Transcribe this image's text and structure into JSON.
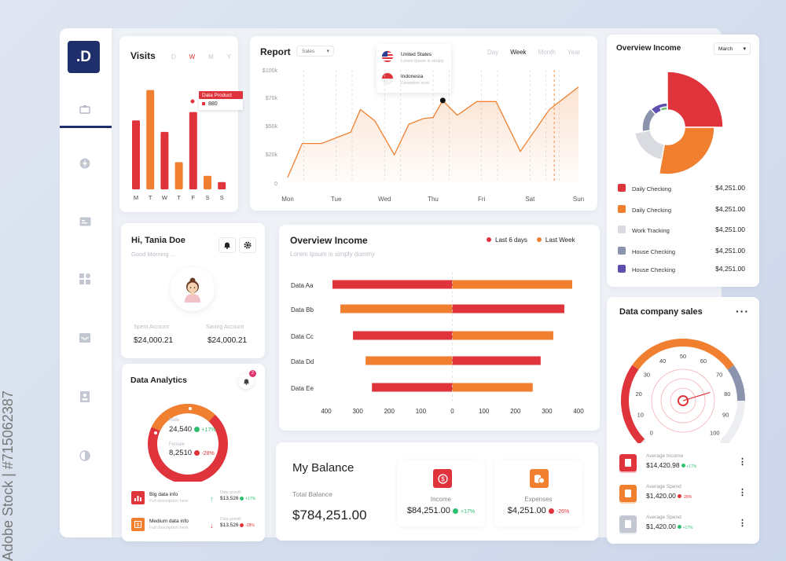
{
  "brand": {
    "logo": ".D"
  },
  "watermark": "Adobe Stock | #715062387",
  "visits": {
    "title": "Visits",
    "tabs": [
      "D",
      "W",
      "M",
      "Y"
    ],
    "active_tab": "W",
    "days": [
      "M",
      "T",
      "W",
      "T",
      "F",
      "S",
      "S"
    ],
    "values": [
      0.66,
      0.95,
      0.55,
      0.26,
      0.74,
      0.13,
      0.07
    ],
    "colors": [
      "#e0343c",
      "#f08030",
      "#e0343c",
      "#f08030",
      "#e0343c",
      "#f08030",
      "#e0343c"
    ],
    "tooltip_title": "Data Product",
    "tooltip_value": "880"
  },
  "report": {
    "title": "Report",
    "select": "Sales",
    "ranges": [
      "Day",
      "Week",
      "Month",
      "Year"
    ],
    "active_range": "Week",
    "legend": [
      {
        "name": "United States",
        "sub": "Lorem Ipsum is simply"
      },
      {
        "name": "Indonesia",
        "sub": "Exception sunt"
      }
    ],
    "chart_data": {
      "type": "area",
      "x": [
        "Mon",
        "Tue",
        "Wed",
        "Thu",
        "Fri",
        "Sat",
        "Sun"
      ],
      "ylabels": [
        "$100k",
        "$70k",
        "$50k",
        "$20k",
        "0"
      ],
      "ylim": [
        0,
        100
      ],
      "points": [
        [
          0,
          5
        ],
        [
          0.3,
          35
        ],
        [
          0.7,
          35
        ],
        [
          1,
          40
        ],
        [
          1.3,
          45
        ],
        [
          1.5,
          65
        ],
        [
          1.8,
          55
        ],
        [
          2.2,
          25
        ],
        [
          2.5,
          52
        ],
        [
          2.8,
          57
        ],
        [
          3,
          58
        ],
        [
          3.2,
          73
        ],
        [
          3.5,
          60
        ],
        [
          3.9,
          72
        ],
        [
          4.3,
          72
        ],
        [
          4.8,
          28
        ],
        [
          5.4,
          65
        ],
        [
          6,
          85
        ]
      ],
      "highlight_index": 11
    }
  },
  "overview_income_pie": {
    "title": "Overview Income",
    "select": "March",
    "chart_data": {
      "type": "pie",
      "slices": [
        {
          "name": "Daily Checking",
          "value": 4251,
          "color": "#e0343c",
          "label": "$4,251.00"
        },
        {
          "name": "Daily Checking",
          "value": 4251,
          "color": "#f08030",
          "label": "$4,251.00"
        },
        {
          "name": "Work Tracking",
          "value": 4251,
          "color": "#d9dbe0",
          "label": "$4,251.00"
        },
        {
          "name": "House Checking",
          "value": 4251,
          "color": "#8a94ad",
          "label": "$4,251.00"
        },
        {
          "name": "House Checking",
          "value": 4251,
          "color": "#5d4fae",
          "label": "$4,251.00"
        }
      ]
    }
  },
  "profile": {
    "greeting": "Hi, Tania Doe",
    "sub": "Good Morning ...",
    "spent_label": "Spent Account",
    "spent_value": "$24,000.21",
    "saving_label": "Saving Account",
    "saving_value": "$24,000.21"
  },
  "overview_income_bar": {
    "title": "Overview Income",
    "sub": "Lorem Ipsum is simply dummy",
    "legend": [
      {
        "name": "Last 6 days",
        "color": "#e0343c"
      },
      {
        "name": "Last Week",
        "color": "#f08030"
      }
    ],
    "chart_data": {
      "type": "bar",
      "categories": [
        "Data Aa",
        "Data Bb",
        "Data Cc",
        "Data Dd",
        "Data Ee"
      ],
      "series": [
        {
          "name": "left",
          "values": [
            [
              -380,
              "#e0343c"
            ],
            [
              -355,
              "#f08030"
            ],
            [
              -315,
              "#e0343c"
            ],
            [
              -275,
              "#f08030"
            ],
            [
              -255,
              "#e0343c"
            ]
          ]
        },
        {
          "name": "right",
          "values": [
            [
              380,
              "#f08030"
            ],
            [
              355,
              "#e0343c"
            ],
            [
              320,
              "#f08030"
            ],
            [
              280,
              "#e0343c"
            ],
            [
              255,
              "#f08030"
            ]
          ]
        }
      ],
      "xticks": [
        "400",
        "300",
        "200",
        "100",
        "0",
        "100",
        "200",
        "300",
        "400"
      ],
      "xlim": [
        -400,
        400
      ]
    }
  },
  "analytics": {
    "title": "Data Analytics",
    "notif_count": "2",
    "male_label": "Male",
    "male_value": "24,540",
    "male_change": "+17%",
    "female_label": "Female",
    "female_value": "8,2510",
    "female_change": "-28%",
    "rows": [
      {
        "title": "Big data info",
        "sub": "Full description here",
        "growth_label": "Data growth",
        "growth": "$13,526",
        "change": "+17%"
      },
      {
        "title": "Medium data info",
        "sub": "Full description here",
        "growth_label": "Data growth",
        "growth": "$13,526",
        "change": "-28%"
      }
    ]
  },
  "balance": {
    "title": "My Balance",
    "total_label": "Total Balance",
    "total_value": "$784,251.00",
    "income_label": "Income",
    "income_value": "$84,251.00",
    "income_change": "+17%",
    "expenses_label": "Expenses",
    "expenses_value": "$4,251.00",
    "expenses_change": "-26%"
  },
  "company": {
    "title": "Data company sales",
    "gauge_ticks": [
      "0",
      "10",
      "20",
      "30",
      "40",
      "50",
      "60",
      "70",
      "80",
      "90",
      "100"
    ],
    "gauge_value": 77,
    "items": [
      {
        "label": "Average Income",
        "value": "$14,420.98",
        "change": "+17%"
      },
      {
        "label": "Average Spend",
        "value": "$1,420.00",
        "change": "-28%"
      },
      {
        "label": "Average Spend",
        "value": "$1,420.00",
        "change": "+17%"
      }
    ]
  }
}
